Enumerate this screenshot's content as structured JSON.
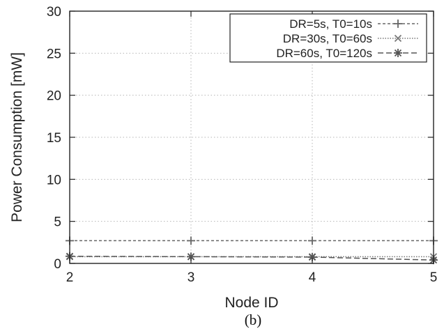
{
  "chart_data": {
    "type": "line",
    "xlabel": "Node ID",
    "ylabel": "Power Consumption [mW]",
    "x": [
      2,
      3,
      4,
      5
    ],
    "xlim": [
      2,
      5
    ],
    "ylim": [
      0,
      30
    ],
    "xticks": [
      "2",
      "3",
      "4",
      "5"
    ],
    "yticks": [
      "0",
      "5",
      "10",
      "15",
      "20",
      "25",
      "30"
    ],
    "grid": true,
    "legend_position": "top-right",
    "caption": "(b)",
    "series": [
      {
        "name": "DR=5s, T0=10s",
        "values": [
          2.7,
          2.7,
          2.7,
          2.7
        ],
        "marker": "plus",
        "dash": "dashed",
        "color": "#666666"
      },
      {
        "name": "DR=30s, T0=60s",
        "values": [
          0.8,
          0.8,
          0.8,
          0.8
        ],
        "marker": "cross",
        "dash": "dotted",
        "color": "#777777"
      },
      {
        "name": "DR=60s, T0=120s",
        "values": [
          0.85,
          0.8,
          0.75,
          0.4
        ],
        "marker": "star",
        "dash": "longdash",
        "color": "#555555"
      }
    ]
  }
}
